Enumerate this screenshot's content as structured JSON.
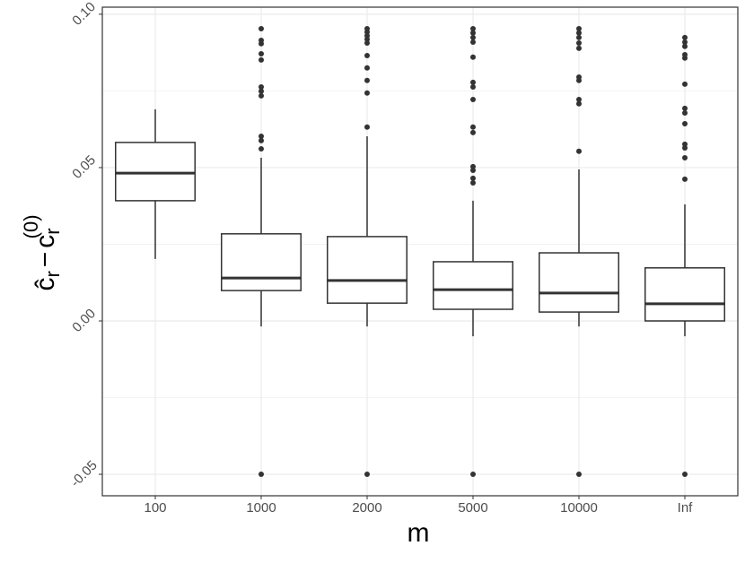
{
  "chart_data": {
    "type": "box",
    "xlabel": "m",
    "ylabel": [
      "ĉ",
      "r",
      "−",
      "c",
      "r",
      "(0)"
    ],
    "categories": [
      "100",
      "1000",
      "2000",
      "5000",
      "10000",
      "Inf"
    ],
    "color": "#333333",
    "grid": true,
    "ylim": [
      -0.057,
      0.1023
    ],
    "yticks": [
      {
        "value": -0.05,
        "label": "-0.05"
      },
      {
        "value": 0,
        "label": "0.00"
      },
      {
        "value": 0.05,
        "label": "0.05"
      },
      {
        "value": 0.1,
        "label": "0.10"
      }
    ],
    "yminorticks": [
      -0.025,
      0.025,
      0.075
    ],
    "boxes": [
      {
        "low": 0.0202,
        "q1": 0.0392,
        "median": 0.0482,
        "q3": 0.0582,
        "high": 0.069,
        "outliers": []
      },
      {
        "low": -0.0018,
        "q1": 0.0099,
        "median": 0.014,
        "q3": 0.0284,
        "high": 0.0532,
        "outliers": [
          0.0953,
          0.0915,
          0.0904,
          0.0871,
          0.0851,
          0.0763,
          0.0749,
          0.0734,
          0.0602,
          0.0588,
          0.0561,
          -0.05
        ]
      },
      {
        "low": -0.0018,
        "q1": 0.0058,
        "median": 0.0132,
        "q3": 0.0275,
        "high": 0.0602,
        "outliers": [
          0.0953,
          0.0942,
          0.093,
          0.0918,
          0.0906,
          0.0865,
          0.0825,
          0.0784,
          0.0743,
          0.0632,
          -0.05
        ]
      },
      {
        "low": -0.005,
        "q1": 0.0038,
        "median": 0.0102,
        "q3": 0.0193,
        "high": 0.0392,
        "outliers": [
          0.0953,
          0.0939,
          0.0924,
          0.0909,
          0.086,
          0.0778,
          0.0763,
          0.0722,
          0.0632,
          0.0614,
          0.0503,
          0.0491,
          0.0465,
          0.045,
          -0.05
        ]
      },
      {
        "low": -0.0018,
        "q1": 0.0029,
        "median": 0.0091,
        "q3": 0.0222,
        "high": 0.0494,
        "outliers": [
          0.0953,
          0.0939,
          0.0924,
          0.0906,
          0.0889,
          0.0795,
          0.0784,
          0.0722,
          0.0708,
          0.0553,
          -0.05
        ]
      },
      {
        "low": -0.005,
        "q1": 0,
        "median": 0.0056,
        "q3": 0.0173,
        "high": 0.038,
        "outliers": [
          0.0924,
          0.0909,
          0.0895,
          0.0868,
          0.0857,
          0.0772,
          0.0693,
          0.0678,
          0.0643,
          0.0576,
          0.0564,
          0.0532,
          0.0462,
          -0.05
        ]
      }
    ]
  }
}
